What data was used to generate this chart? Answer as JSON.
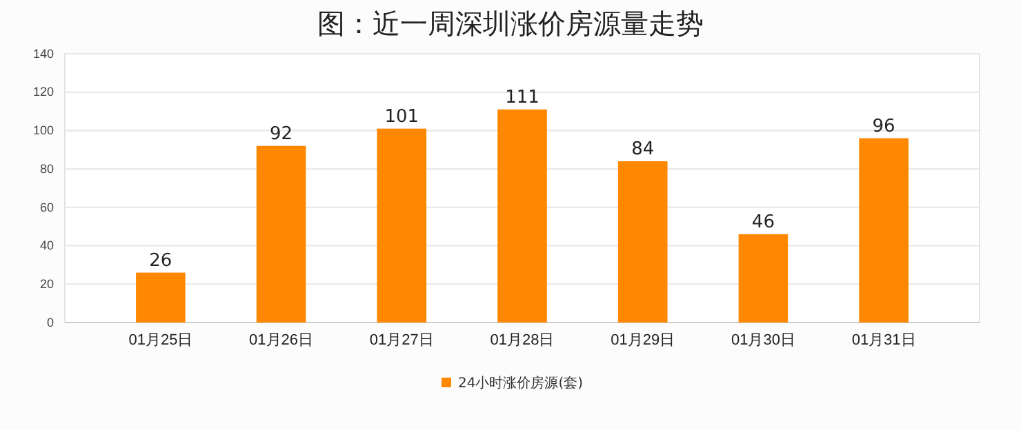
{
  "chart_data": {
    "type": "bar",
    "title": "图：近一周深圳涨价房源量走势",
    "categories": [
      "01月25日",
      "01月26日",
      "01月27日",
      "01月28日",
      "01月29日",
      "01月30日",
      "01月31日"
    ],
    "series": [
      {
        "name": "24小时涨价房源(套)",
        "color": "#ff8800",
        "values": [
          26,
          92,
          101,
          111,
          84,
          46,
          96
        ]
      }
    ],
    "ylim": [
      0,
      140
    ],
    "yticks": [
      0,
      20,
      40,
      60,
      80,
      100,
      120,
      140
    ],
    "grid": "y",
    "legend": "bottom",
    "data_labels": true
  }
}
